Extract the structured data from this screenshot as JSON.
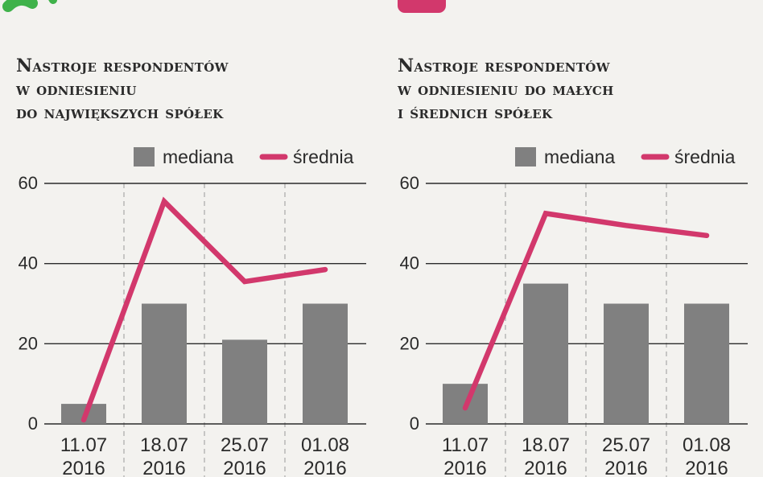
{
  "colors": {
    "bar": "#808080",
    "line": "#d2386c",
    "text": "#2b2b2b",
    "grid": "#2b2b2b",
    "divider": "#a8a8a8",
    "background": "#f3f2ef",
    "accent_green": "#3fb24a",
    "accent_pink": "#d2386c"
  },
  "chart_data": [
    {
      "type": "bar+line",
      "title_lines": [
        "Nastroje respondentów",
        "w odniesieniu",
        "do największych spółek"
      ],
      "legend": {
        "bar_label": "mediana",
        "line_label": "średnia",
        "placement": "top-right"
      },
      "categories": [
        {
          "line1": "11.07",
          "line2": "2016"
        },
        {
          "line1": "18.07",
          "line2": "2016"
        },
        {
          "line1": "25.07",
          "line2": "2016"
        },
        {
          "line1": "01.08",
          "line2": "2016"
        }
      ],
      "y_ticks": [
        "0",
        "20",
        "40",
        "60"
      ],
      "ylim": [
        0,
        60
      ],
      "series": [
        {
          "name": "mediana",
          "kind": "bar",
          "values": [
            5,
            30,
            21,
            30
          ]
        },
        {
          "name": "średnia",
          "kind": "line",
          "values": [
            1,
            55.5,
            35.5,
            38.5
          ]
        }
      ],
      "grid": true
    },
    {
      "type": "bar+line",
      "title_lines": [
        "Nastroje respondentów",
        "w odniesieniu do małych",
        "i średnich spółek"
      ],
      "legend": {
        "bar_label": "mediana",
        "line_label": "średnia",
        "placement": "top-right"
      },
      "categories": [
        {
          "line1": "11.07",
          "line2": "2016"
        },
        {
          "line1": "18.07",
          "line2": "2016"
        },
        {
          "line1": "25.07",
          "line2": "2016"
        },
        {
          "line1": "01.08",
          "line2": "2016"
        }
      ],
      "y_ticks": [
        "0",
        "20",
        "40",
        "60"
      ],
      "ylim": [
        0,
        60
      ],
      "series": [
        {
          "name": "mediana",
          "kind": "bar",
          "values": [
            10,
            35,
            30,
            30
          ]
        },
        {
          "name": "średnia",
          "kind": "line",
          "values": [
            4,
            52.5,
            49.5,
            47
          ]
        }
      ],
      "grid": true
    }
  ]
}
